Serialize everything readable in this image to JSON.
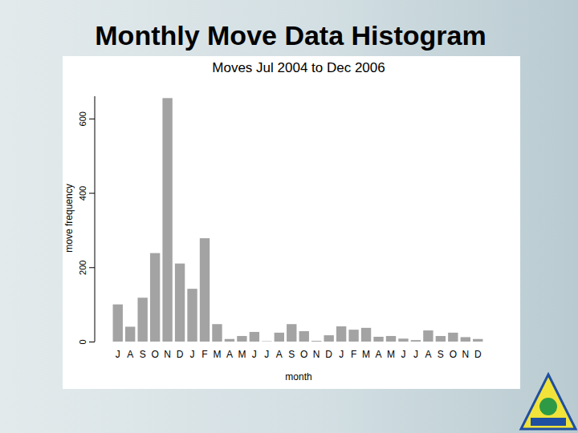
{
  "page": {
    "title": "Monthly Move Data Histogram"
  },
  "chart_data": {
    "type": "bar",
    "title": "Moves Jul 2004 to Dec 2006",
    "x_label": "month",
    "y_label": "move frequency",
    "categories": [
      "J",
      "A",
      "S",
      "O",
      "N",
      "D",
      "J",
      "F",
      "M",
      "A",
      "M",
      "J",
      "J",
      "A",
      "S",
      "O",
      "N",
      "D",
      "J",
      "F",
      "M",
      "A",
      "M",
      "J",
      "J",
      "A",
      "S",
      "O",
      "N",
      "D"
    ],
    "values": [
      100,
      40,
      118,
      238,
      655,
      210,
      142,
      278,
      47,
      7,
      15,
      26,
      1,
      24,
      47,
      28,
      2,
      17,
      41,
      32,
      37,
      13,
      15,
      8,
      4,
      30,
      15,
      24,
      12,
      7
    ],
    "color": "#a3a3a3",
    "ylim": [
      0,
      660
    ],
    "yticks": [
      0,
      200,
      400,
      600
    ],
    "grid": false
  }
}
